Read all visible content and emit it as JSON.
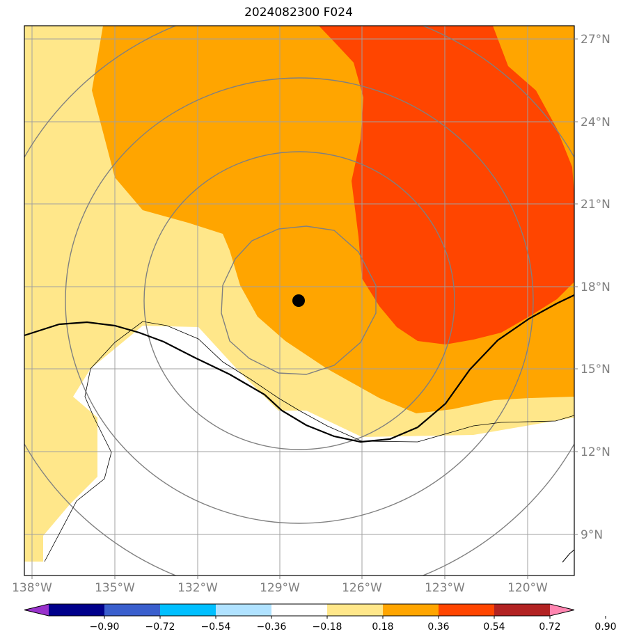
{
  "title": "2024082300 F024",
  "lon_labels": [
    "138°W",
    "135°W",
    "132°W",
    "129°W",
    "126°W",
    "123°W",
    "120°W"
  ],
  "lat_labels": [
    "27°N",
    "24°N",
    "21°N",
    "18°N",
    "15°N",
    "12°N",
    "9°N"
  ],
  "storm_center": {
    "lon": -128.3,
    "lat": 17.5
  },
  "colorbar": {
    "tick_labels": [
      "−0.90",
      "−0.72",
      "−0.54",
      "−0.36",
      "−0.18",
      "0.18",
      "0.36",
      "0.54",
      "0.72",
      "0.90"
    ],
    "colors": [
      "#9932cc",
      "#00008b",
      "#3a5fcd",
      "#00bfff",
      "#b0e2ff",
      "#ffffff",
      "#ffe78a",
      "#ffa500",
      "#ff4500",
      "#b22222",
      "#ff85b0"
    ]
  },
  "fill_colors": {
    "low": "#ffe78a",
    "mid": "#ffa500",
    "high": "#ff4500"
  },
  "line_colors": {
    "grid": "#a0a0a0",
    "rings": "#808080",
    "boundary": "#000000"
  }
}
